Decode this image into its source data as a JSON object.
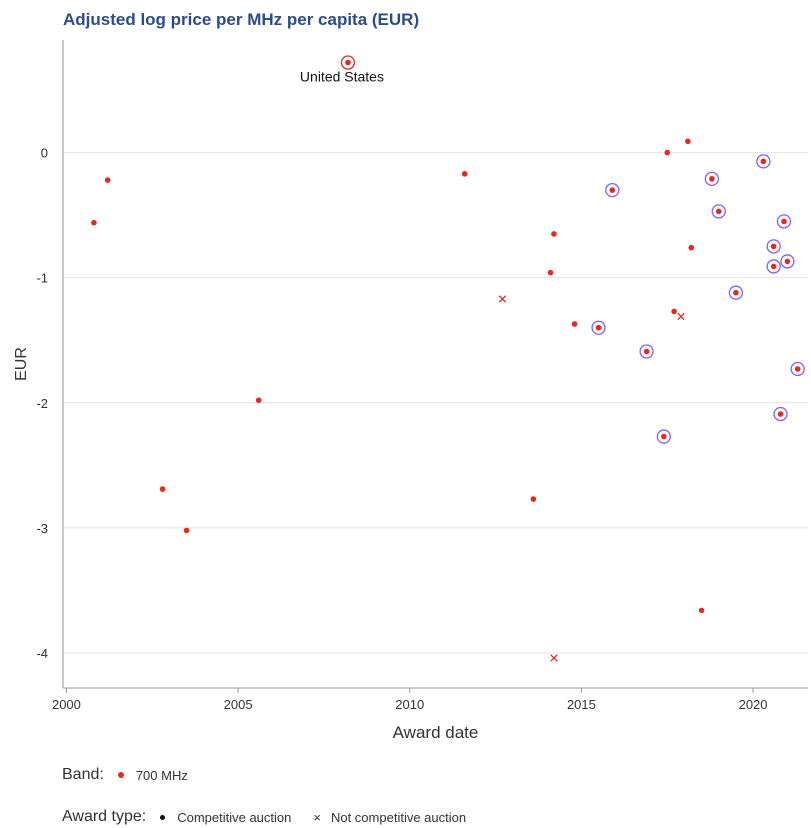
{
  "chart_data": {
    "type": "scatter",
    "title": "Adjusted log price per MHz per capita (EUR)",
    "xlabel": "Award date",
    "ylabel": "EUR",
    "xlim": [
      1999.9,
      2021.6
    ],
    "ylim": [
      -4.28,
      0.9
    ],
    "x_ticks": [
      2000,
      2005,
      2010,
      2015,
      2020
    ],
    "y_ticks": [
      0,
      -1,
      -2,
      -3,
      -4
    ],
    "y_tick_labels": [
      "0",
      "-1",
      "-2",
      "-3",
      "-4"
    ],
    "grid": "horizontal",
    "colors": {
      "band_700": "#e8281e",
      "highlight_ring": "#8a5cf5",
      "title": "#2b4c8c"
    },
    "series": [
      {
        "name": "700 MHz",
        "points": [
          {
            "x": 2000.8,
            "y": -0.56,
            "award": "competitive",
            "ring": false
          },
          {
            "x": 2001.2,
            "y": -0.22,
            "award": "competitive",
            "ring": false
          },
          {
            "x": 2002.8,
            "y": -2.69,
            "award": "competitive",
            "ring": false
          },
          {
            "x": 2003.5,
            "y": -3.02,
            "award": "competitive",
            "ring": false
          },
          {
            "x": 2005.6,
            "y": -1.98,
            "award": "competitive",
            "ring": false
          },
          {
            "x": 2008.2,
            "y": 0.72,
            "award": "competitive",
            "ring": true,
            "label": "United States"
          },
          {
            "x": 2011.6,
            "y": -0.17,
            "award": "competitive",
            "ring": false
          },
          {
            "x": 2012.7,
            "y": -1.17,
            "award": "not-competitive",
            "ring": false
          },
          {
            "x": 2013.6,
            "y": -2.77,
            "award": "competitive",
            "ring": false
          },
          {
            "x": 2014.1,
            "y": -0.96,
            "award": "competitive",
            "ring": false
          },
          {
            "x": 2014.2,
            "y": -0.65,
            "award": "competitive",
            "ring": false
          },
          {
            "x": 2014.2,
            "y": -4.04,
            "award": "not-competitive",
            "ring": false
          },
          {
            "x": 2014.8,
            "y": -1.37,
            "award": "competitive",
            "ring": false
          },
          {
            "x": 2015.5,
            "y": -1.4,
            "award": "competitive",
            "ring": true
          },
          {
            "x": 2015.9,
            "y": -0.3,
            "award": "competitive",
            "ring": true
          },
          {
            "x": 2016.9,
            "y": -1.59,
            "award": "competitive",
            "ring": true
          },
          {
            "x": 2017.4,
            "y": -2.27,
            "award": "competitive",
            "ring": true
          },
          {
            "x": 2017.5,
            "y": 0.0,
            "award": "competitive",
            "ring": false
          },
          {
            "x": 2017.7,
            "y": -1.27,
            "award": "competitive",
            "ring": false
          },
          {
            "x": 2017.9,
            "y": -1.31,
            "award": "not-competitive",
            "ring": false
          },
          {
            "x": 2018.1,
            "y": 0.09,
            "award": "competitive",
            "ring": false
          },
          {
            "x": 2018.2,
            "y": -0.76,
            "award": "competitive",
            "ring": false
          },
          {
            "x": 2018.5,
            "y": -3.66,
            "award": "competitive",
            "ring": false
          },
          {
            "x": 2018.8,
            "y": -0.21,
            "award": "competitive",
            "ring": true
          },
          {
            "x": 2019.0,
            "y": -0.47,
            "award": "competitive",
            "ring": true
          },
          {
            "x": 2019.5,
            "y": -1.12,
            "award": "competitive",
            "ring": true
          },
          {
            "x": 2020.3,
            "y": -0.07,
            "award": "competitive",
            "ring": true
          },
          {
            "x": 2020.6,
            "y": -0.75,
            "award": "competitive",
            "ring": true
          },
          {
            "x": 2020.6,
            "y": -0.91,
            "award": "competitive",
            "ring": true
          },
          {
            "x": 2020.8,
            "y": -2.09,
            "award": "competitive",
            "ring": true
          },
          {
            "x": 2020.9,
            "y": -0.55,
            "award": "competitive",
            "ring": true
          },
          {
            "x": 2021.0,
            "y": -0.87,
            "award": "competitive",
            "ring": true
          },
          {
            "x": 2021.3,
            "y": -1.73,
            "award": "competitive",
            "ring": true
          }
        ]
      }
    ],
    "legend": {
      "placement": "bottom",
      "band_title": "Band:",
      "band_items": [
        {
          "label": "700 MHz",
          "color": "#e8281e"
        }
      ],
      "award_title": "Award type:",
      "award_items": [
        {
          "label": "Competitive auction",
          "marker": "dot"
        },
        {
          "label": "Not competitive auction",
          "marker": "cross"
        }
      ]
    }
  }
}
